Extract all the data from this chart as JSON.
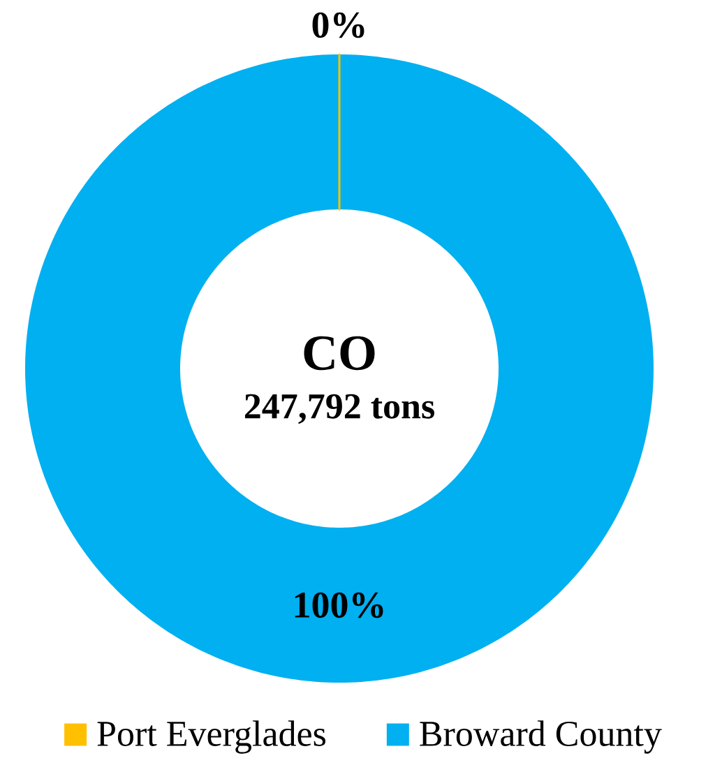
{
  "chart_data": {
    "type": "donut",
    "title": "CO",
    "subtitle": "247,792 tons",
    "categories": [
      "Port Everglades",
      "Broward County"
    ],
    "values": [
      0,
      100
    ],
    "colors": [
      "#ffc000",
      "#00b0f0"
    ],
    "value_labels": [
      "0%",
      "100%"
    ],
    "legend": "bottom"
  }
}
